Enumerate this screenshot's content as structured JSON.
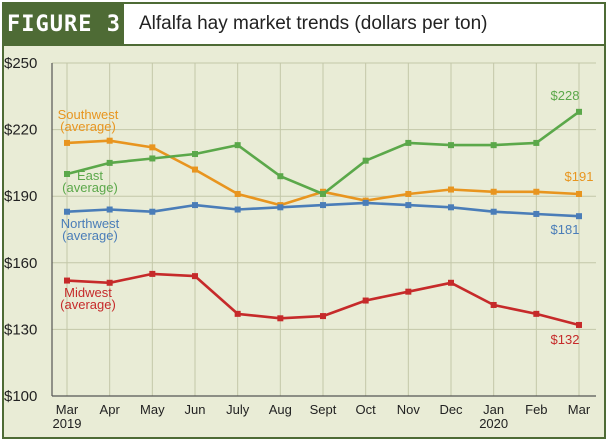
{
  "figure": {
    "label": "FIGURE 3",
    "title": "Alfalfa hay market trends (dollars per ton)"
  },
  "colors": {
    "frame": "#4e6b35",
    "plot_background": "#e9ecd6",
    "grid": "#c3c7a8"
  },
  "chart_data": {
    "type": "line",
    "title": "Alfalfa hay market trends (dollars per ton)",
    "categories": [
      "Mar",
      "Apr",
      "May",
      "Jun",
      "July",
      "Aug",
      "Sept",
      "Oct",
      "Nov",
      "Dec",
      "Jan",
      "Feb",
      "Mar"
    ],
    "year_labels": [
      "2019",
      "",
      "",
      "",
      "",
      "",
      "",
      "",
      "",
      "",
      "2020",
      "",
      ""
    ],
    "ylim": [
      100,
      250
    ],
    "yticks": [
      100,
      130,
      160,
      190,
      220,
      250
    ],
    "ytick_labels": [
      "$100",
      "$130",
      "$160",
      "$190",
      "$220",
      "$250"
    ],
    "grid": true,
    "series": [
      {
        "name": "Southwest (average)",
        "label_lines": [
          "Southwest",
          "(average)"
        ],
        "color": "#e8951f",
        "values": [
          214,
          215,
          212,
          202,
          191,
          186,
          192,
          188,
          191,
          193,
          192,
          192,
          191
        ],
        "end_label": "$191"
      },
      {
        "name": "East (average)",
        "label_lines": [
          "East",
          "(average)"
        ],
        "color": "#5ba84a",
        "values": [
          200,
          205,
          207,
          209,
          213,
          199,
          191,
          206,
          214,
          213,
          213,
          214,
          228
        ],
        "end_label": "$228"
      },
      {
        "name": "Northwest (average)",
        "label_lines": [
          "Northwest",
          "(average)"
        ],
        "color": "#4a7db8",
        "values": [
          183,
          184,
          183,
          186,
          184,
          185,
          186,
          187,
          186,
          185,
          183,
          182,
          181
        ],
        "end_label": "$181"
      },
      {
        "name": "Midwest (average)",
        "label_lines": [
          "Midwest",
          "(average)"
        ],
        "color": "#c62a2a",
        "values": [
          152,
          151,
          155,
          154,
          137,
          135,
          136,
          143,
          147,
          151,
          141,
          137,
          132
        ],
        "end_label": "$132"
      }
    ]
  }
}
